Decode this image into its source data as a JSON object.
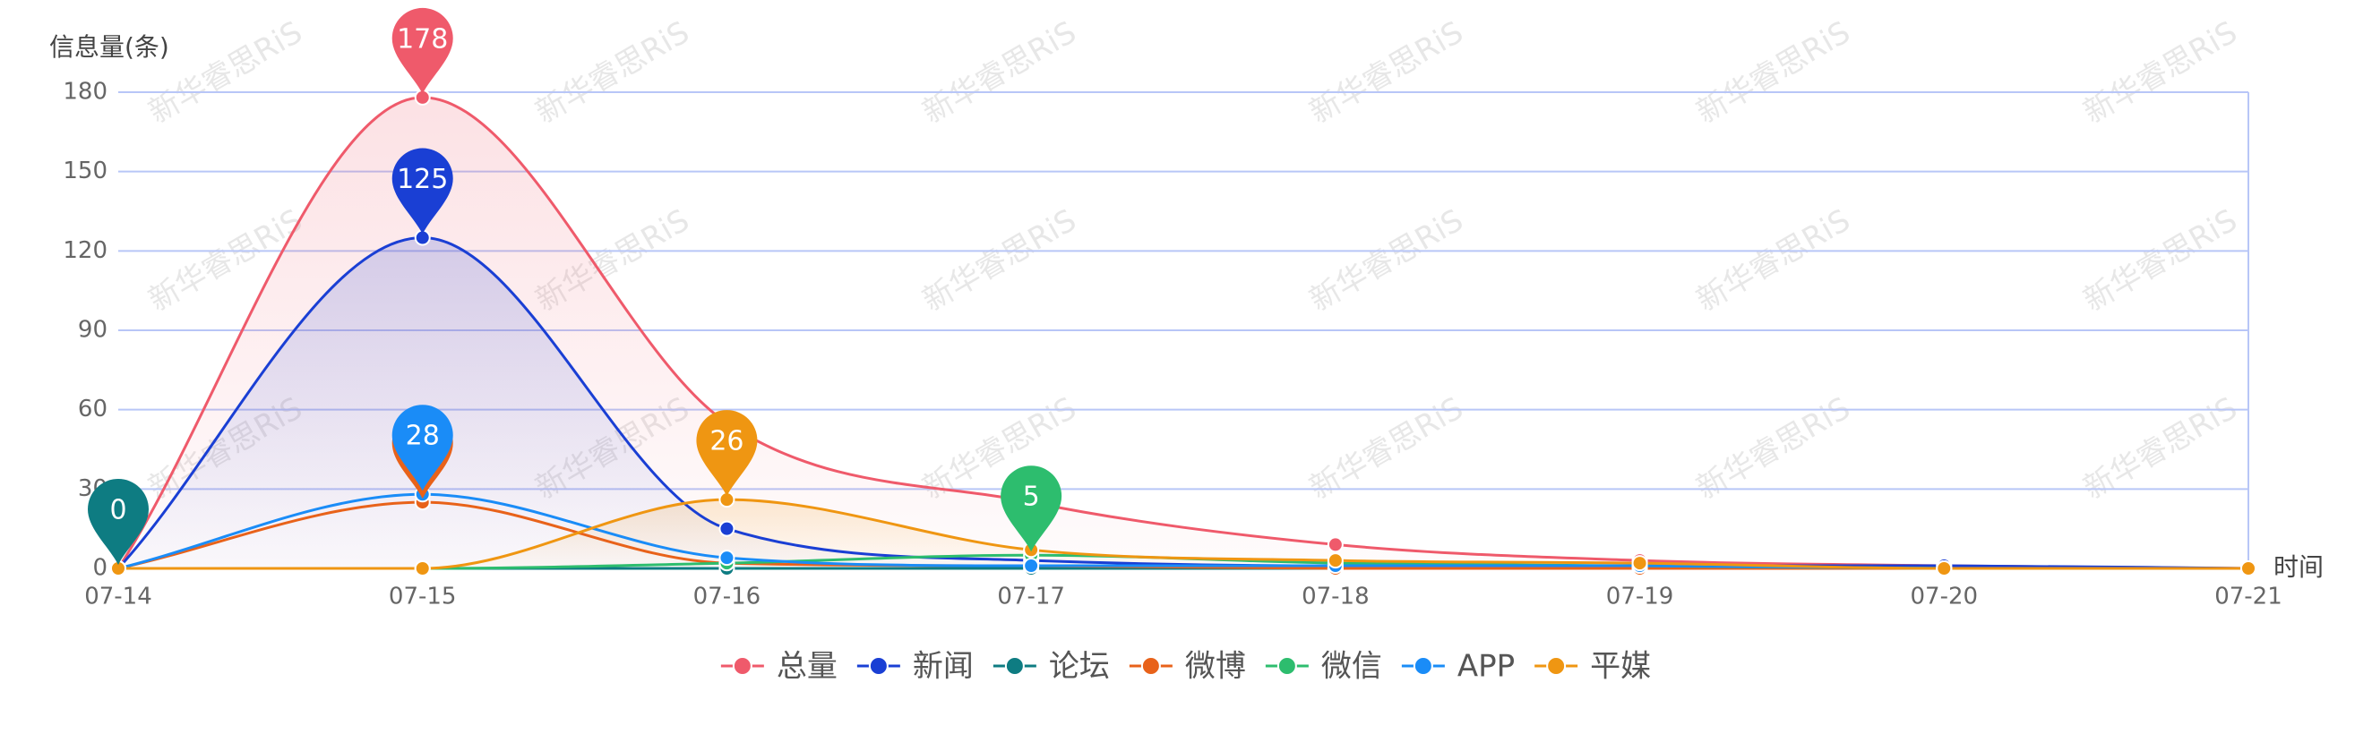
{
  "chart_data": {
    "type": "line",
    "y_axis_label": "信息量(条)",
    "x_axis_label": "时间",
    "watermark": "新华睿思RiS",
    "categories": [
      "07-14",
      "07-15",
      "07-16",
      "07-17",
      "07-18",
      "07-19",
      "07-20",
      "07-21"
    ],
    "ylim": [
      0,
      180
    ],
    "yticks": [
      0,
      30,
      60,
      90,
      120,
      150,
      180
    ],
    "grid": true,
    "series": [
      {
        "name": "总量",
        "color": "#ef5a6b",
        "area": true,
        "values": [
          0,
          178,
          55,
          25,
          9,
          3,
          1,
          0
        ]
      },
      {
        "name": "新闻",
        "color": "#1a3fd4",
        "area": true,
        "values": [
          0,
          125,
          15,
          3,
          1,
          1,
          1,
          0
        ]
      },
      {
        "name": "论坛",
        "color": "#0e7c82",
        "values": [
          0,
          0,
          0,
          0,
          0,
          0,
          0,
          0
        ]
      },
      {
        "name": "微博",
        "color": "#e8621a",
        "values": [
          0,
          25,
          2,
          1,
          0,
          0,
          0,
          0
        ]
      },
      {
        "name": "微信",
        "color": "#2dbd6e",
        "values": [
          0,
          0,
          2,
          5,
          2,
          1,
          0,
          0
        ]
      },
      {
        "name": "APP",
        "color": "#1a8cf7",
        "values": [
          0,
          28,
          4,
          1,
          1,
          1,
          0,
          0
        ]
      },
      {
        "name": "平媒",
        "color": "#ef9612",
        "area": true,
        "values": [
          0,
          0,
          26,
          7,
          3,
          2,
          0,
          0
        ]
      }
    ]
  }
}
